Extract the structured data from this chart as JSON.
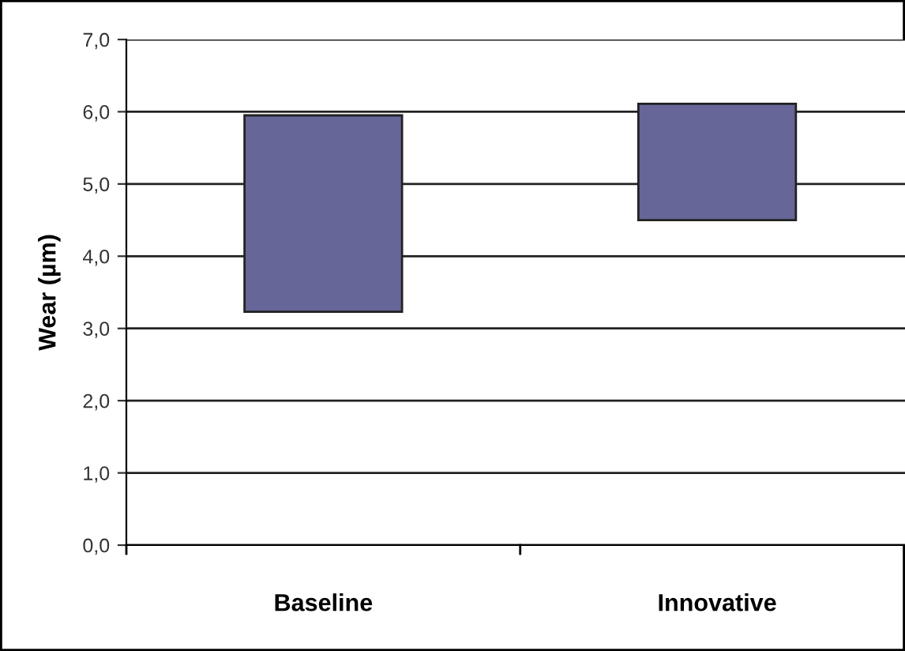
{
  "chart_data": {
    "type": "bar",
    "ylabel": "Wear (µm)",
    "categories": [
      "Baseline",
      "Innovative"
    ],
    "base": [
      3.23,
      4.5
    ],
    "values": [
      2.72,
      1.61
    ],
    "color": "#666699",
    "ylim": [
      0,
      7
    ],
    "yticks": [
      {
        "value": 0,
        "label": "0,0"
      },
      {
        "value": 1,
        "label": "1,0"
      },
      {
        "value": 2,
        "label": "2,0"
      },
      {
        "value": 3,
        "label": "3,0"
      },
      {
        "value": 4,
        "label": "4,0"
      },
      {
        "value": 5,
        "label": "5,0"
      },
      {
        "value": 6,
        "label": "6,0"
      },
      {
        "value": 7,
        "label": "7,0"
      }
    ],
    "grid": "y",
    "legend": false
  }
}
